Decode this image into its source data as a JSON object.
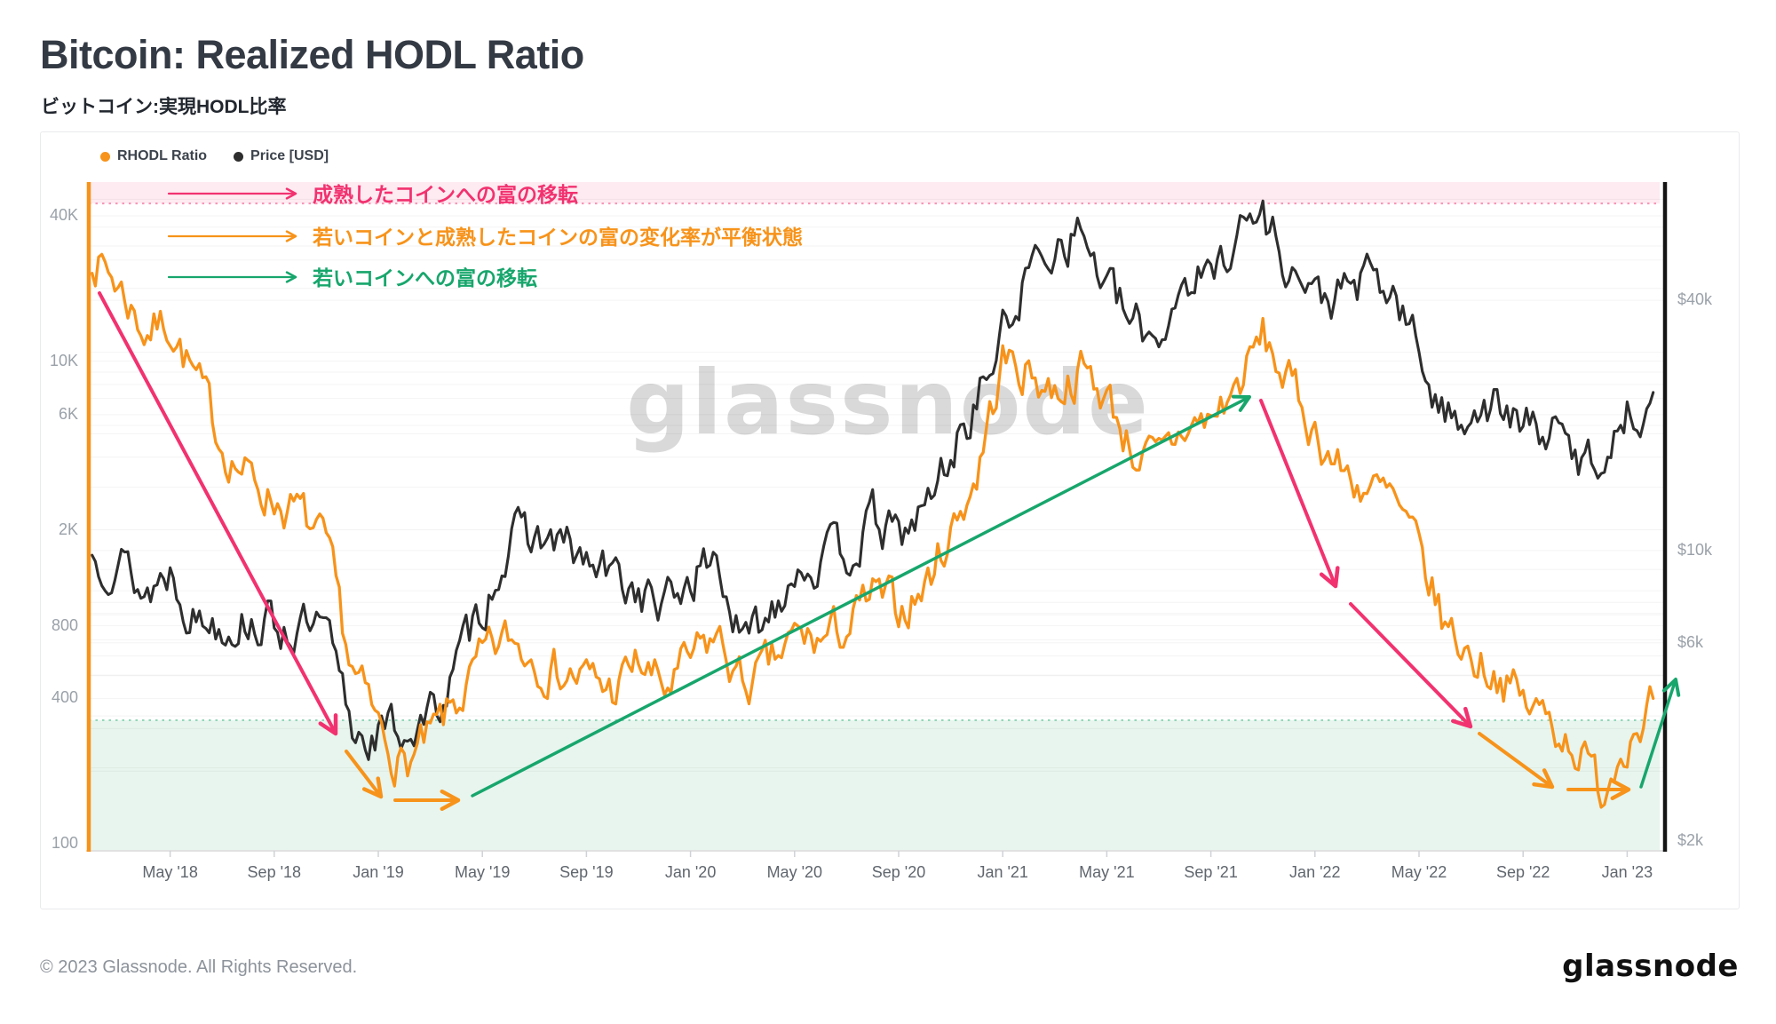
{
  "page": {
    "title": "Bitcoin: Realized HODL Ratio",
    "subtitle": "ビットコイン:実現HODL比率",
    "watermark": "glassnode",
    "footer_copyright": "© 2023 Glassnode. All Rights Reserved.",
    "footer_logo": "glassnode"
  },
  "colors": {
    "rhodl": "#f7931a",
    "price": "#2e2e2e",
    "pink": "#f23270",
    "orange": "#f7931a",
    "green": "#17a66c",
    "pink_band_fill": "rgba(244,63,122,0.10)",
    "green_band_fill": "rgba(22,160,90,0.10)",
    "axis_label": "#9aa1a9",
    "x_label": "#60666e"
  },
  "legend": [
    {
      "label": "RHODL Ratio",
      "color": "#f7931a"
    },
    {
      "label": "Price [USD]",
      "color": "#2e2e2e"
    }
  ],
  "annotations": [
    {
      "label": "成熟したコインへの富の移転",
      "color": "#f23270"
    },
    {
      "label": "若いコインと成熟したコインの富の変化率が平衡状態",
      "color": "#f7931a"
    },
    {
      "label": "若いコインへの富の移転",
      "color": "#17a66c"
    }
  ],
  "axes": {
    "left_ticks": [
      {
        "label": "40K",
        "value": 40000
      },
      {
        "label": "10K",
        "value": 10000
      },
      {
        "label": "6K",
        "value": 6000
      },
      {
        "label": "2K",
        "value": 2000
      },
      {
        "label": "800",
        "value": 800
      },
      {
        "label": "400",
        "value": 400
      },
      {
        "label": "100",
        "value": 100
      }
    ],
    "right_ticks": [
      {
        "label": "$40k",
        "value": 40000
      },
      {
        "label": "$10k",
        "value": 10000
      },
      {
        "label": "$6k",
        "value": 6000
      },
      {
        "label": "$2k",
        "value": 2000
      }
    ],
    "x_ticks": [
      {
        "label": "May '18",
        "t": 4
      },
      {
        "label": "Sep '18",
        "t": 8
      },
      {
        "label": "Jan '19",
        "t": 12
      },
      {
        "label": "May '19",
        "t": 16
      },
      {
        "label": "Sep '19",
        "t": 20
      },
      {
        "label": "Jan '20",
        "t": 24
      },
      {
        "label": "May '20",
        "t": 28
      },
      {
        "label": "Sep '20",
        "t": 32
      },
      {
        "label": "Jan '21",
        "t": 36
      },
      {
        "label": "May '21",
        "t": 40
      },
      {
        "label": "Sep '21",
        "t": 44
      },
      {
        "label": "Jan '22",
        "t": 48
      },
      {
        "label": "May '22",
        "t": 52
      },
      {
        "label": "Sep '22",
        "t": 56
      },
      {
        "label": "Jan '23",
        "t": 60
      }
    ]
  },
  "chart_data": {
    "type": "line",
    "title": "Bitcoin: Realized HODL Ratio",
    "x_months": [
      "2018-02",
      "2018-03",
      "2018-04",
      "2018-05",
      "2018-06",
      "2018-07",
      "2018-08",
      "2018-09",
      "2018-10",
      "2018-11",
      "2018-12",
      "2019-01",
      "2019-02",
      "2019-03",
      "2019-04",
      "2019-05",
      "2019-06",
      "2019-07",
      "2019-08",
      "2019-09",
      "2019-10",
      "2019-11",
      "2019-12",
      "2020-01",
      "2020-02",
      "2020-03",
      "2020-04",
      "2020-05",
      "2020-06",
      "2020-07",
      "2020-08",
      "2020-09",
      "2020-10",
      "2020-11",
      "2020-12",
      "2021-01",
      "2021-02",
      "2021-03",
      "2021-04",
      "2021-05",
      "2021-06",
      "2021-07",
      "2021-08",
      "2021-09",
      "2021-10",
      "2021-11",
      "2021-12",
      "2022-01",
      "2022-02",
      "2022-03",
      "2022-04",
      "2022-05",
      "2022-06",
      "2022-07",
      "2022-08",
      "2022-09",
      "2022-10",
      "2022-11",
      "2022-12",
      "2023-01",
      "2023-02"
    ],
    "series": [
      {
        "name": "RHODL Ratio",
        "axis": "left",
        "color": "#f7931a",
        "values": [
          28000,
          21000,
          13500,
          14500,
          8200,
          4600,
          3300,
          2700,
          2300,
          1600,
          520,
          300,
          210,
          265,
          380,
          560,
          700,
          610,
          520,
          480,
          430,
          560,
          430,
          560,
          720,
          450,
          520,
          700,
          690,
          780,
          1050,
          920,
          1150,
          2000,
          3400,
          10000,
          9000,
          7600,
          9200,
          7200,
          4300,
          3700,
          5300,
          5700,
          7800,
          12500,
          8000,
          5200,
          3500,
          3000,
          2600,
          1550,
          800,
          600,
          520,
          380,
          330,
          260,
          165,
          290,
          400
        ]
      },
      {
        "name": "Price [USD]",
        "axis": "right",
        "color": "#2e2e2e",
        "values": [
          9600,
          9900,
          7800,
          9100,
          6900,
          6800,
          6900,
          6600,
          6500,
          6200,
          3700,
          3650,
          3700,
          3950,
          5200,
          7300,
          10500,
          10800,
          10300,
          9200,
          8600,
          8000,
          7200,
          8600,
          9700,
          5800,
          7100,
          9300,
          9400,
          9800,
          11700,
          10600,
          12500,
          17000,
          23000,
          33000,
          47000,
          56000,
          59000,
          43000,
          34000,
          33000,
          46000,
          45000,
          60000,
          64000,
          49000,
          40000,
          41000,
          44500,
          41000,
          30000,
          20500,
          22500,
          22000,
          19500,
          19800,
          16500,
          16800,
          21500,
          24000
        ]
      }
    ],
    "left_axis": {
      "scale": "log",
      "range": [
        94,
        56500
      ],
      "tick_labels": [
        "100",
        "400",
        "800",
        "2K",
        "6K",
        "10K",
        "40K"
      ]
    },
    "right_axis": {
      "scale": "log",
      "range": [
        1900,
        76000
      ],
      "tick_labels": [
        "$2k",
        "$6k",
        "$10k",
        "$40k"
      ]
    },
    "bands": [
      {
        "name": "wealth-transfer-to-mature-coins",
        "axis": "left",
        "value_range": [
          45000,
          56500
        ],
        "fill": "rgba(244,63,122,0.10)",
        "edge": "#f23270"
      },
      {
        "name": "wealth-transfer-to-young-coins",
        "axis": "left",
        "value_range": [
          94,
          325
        ],
        "fill": "rgba(22,160,90,0.10)",
        "edge": "#2fae77"
      }
    ],
    "grid": "log-minor-horizontal",
    "legend_position": "top-left"
  }
}
